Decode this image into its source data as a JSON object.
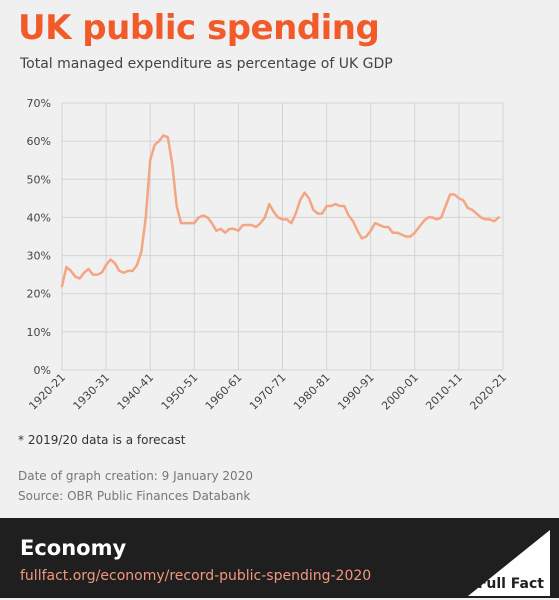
{
  "header": {
    "title": "UK public spending",
    "subtitle": "Total managed expenditure as percentage of UK GDP"
  },
  "chart_data": {
    "type": "line",
    "title": "UK public spending",
    "subtitle": "Total managed expenditure as percentage of UK GDP",
    "xlabel": "",
    "ylabel": "",
    "ylim": [
      0,
      70
    ],
    "yticks": [
      "0%",
      "10%",
      "20%",
      "30%",
      "40%",
      "50%",
      "60%",
      "70%"
    ],
    "xticks": [
      "1920-21",
      "1930-31",
      "1940-41",
      "1950-51",
      "1960-61",
      "1970-71",
      "1980-81",
      "1990-91",
      "2000-01",
      "2010-11",
      "2020-21"
    ],
    "grid": true,
    "legend": "none",
    "series": [
      {
        "color": "#f4a582",
        "x": [
          1920,
          1921,
          1922,
          1923,
          1924,
          1925,
          1926,
          1927,
          1928,
          1929,
          1930,
          1931,
          1932,
          1933,
          1934,
          1935,
          1936,
          1937,
          1938,
          1939,
          1940,
          1941,
          1942,
          1943,
          1944,
          1945,
          1946,
          1947,
          1948,
          1949,
          1950,
          1951,
          1952,
          1953,
          1954,
          1955,
          1956,
          1957,
          1958,
          1959,
          1960,
          1961,
          1962,
          1963,
          1964,
          1965,
          1966,
          1967,
          1968,
          1969,
          1970,
          1971,
          1972,
          1973,
          1974,
          1975,
          1976,
          1977,
          1978,
          1979,
          1980,
          1981,
          1982,
          1983,
          1984,
          1985,
          1986,
          1987,
          1988,
          1989,
          1990,
          1991,
          1992,
          1993,
          1994,
          1995,
          1996,
          1997,
          1998,
          1999,
          2000,
          2001,
          2002,
          2003,
          2004,
          2005,
          2006,
          2007,
          2008,
          2009,
          2010,
          2011,
          2012,
          2013,
          2014,
          2015,
          2016,
          2017,
          2018,
          2019
        ],
        "values": [
          22,
          27,
          26,
          24.5,
          24,
          25.5,
          26.5,
          25,
          25,
          25.5,
          27.5,
          29,
          28,
          26,
          25.5,
          26,
          26,
          27.5,
          31,
          40,
          55,
          59,
          60,
          61.5,
          61,
          54,
          43,
          38.5,
          38.5,
          38.5,
          38.5,
          40,
          40.5,
          40,
          38.5,
          36.5,
          37,
          36,
          37,
          37,
          36.5,
          38,
          38,
          38,
          37.5,
          38.5,
          40,
          43.5,
          41.5,
          40,
          39.5,
          39.5,
          38.5,
          41,
          44.5,
          46.5,
          45,
          42,
          41,
          41,
          43,
          43,
          43.5,
          43,
          43,
          40.5,
          39,
          36.5,
          34.5,
          35,
          36.5,
          38.5,
          38,
          37.5,
          37.5,
          36,
          36,
          35.5,
          35,
          35,
          36,
          37.5,
          39,
          40,
          40,
          39.5,
          40,
          43,
          46,
          46,
          45,
          44.5,
          42.5,
          42,
          41,
          40,
          39.5,
          39.5,
          39,
          40
        ]
      }
    ]
  },
  "footnote": "* 2019/20 data is a forecast",
  "meta": {
    "created": "Date of graph creation: 9 January 2020",
    "source": "Source: OBR Public Finances Databank"
  },
  "footer": {
    "section": "Economy",
    "url": "fullfact.org/economy/record-public-spending-2020",
    "logo_text": "Full Fact",
    "logo_color": "#ffffff"
  }
}
